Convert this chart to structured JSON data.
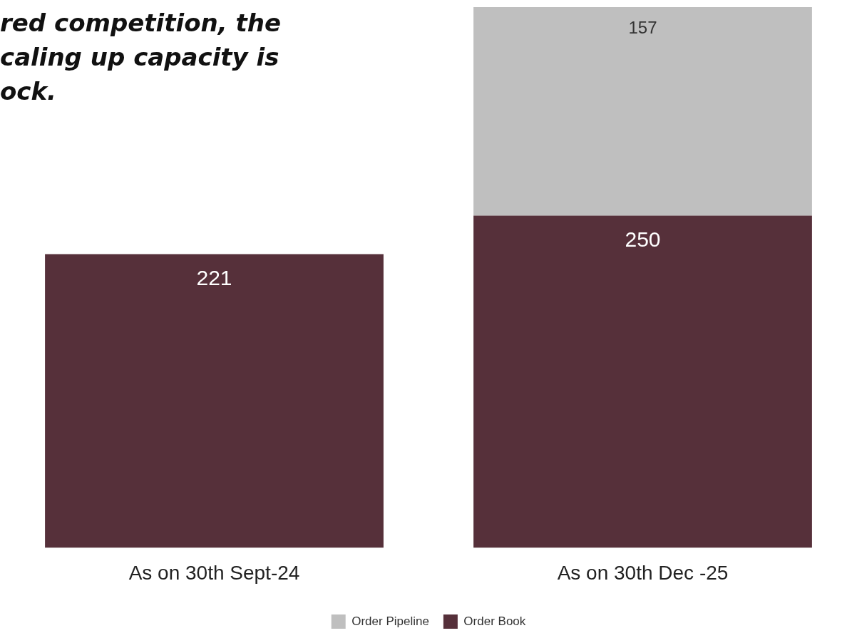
{
  "chart_data": {
    "type": "bar",
    "title": "red competition, the\ncaling up capacity is\nock.",
    "categories": [
      "As on 30th Sept-24",
      "As on 30th Dec -25"
    ],
    "series": [
      {
        "name": "Order Book",
        "color": "#56303a",
        "values": [
          221,
          250
        ]
      },
      {
        "name": "Order Pipeline",
        "color": "#bfbfbf",
        "values": [
          null,
          157
        ]
      }
    ],
    "stacked": true,
    "data_labels": true,
    "legend": "bottom",
    "tick_labels": "x",
    "grid": false
  }
}
